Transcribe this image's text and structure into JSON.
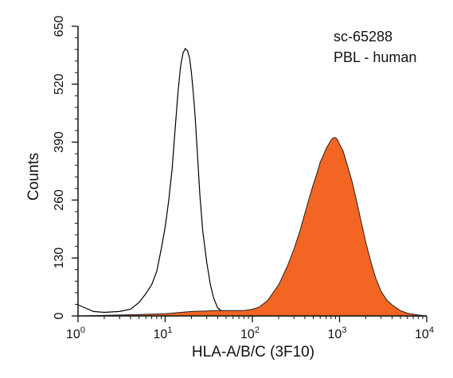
{
  "chart_data": {
    "type": "area",
    "xlabel": "HLA-A/B/C (3F10)",
    "ylabel": "Counts",
    "xscale": "log",
    "xlim": [
      1,
      10000
    ],
    "ylim": [
      0,
      650
    ],
    "x_ticks": [
      {
        "value": 1,
        "base": "10",
        "exp": "0"
      },
      {
        "value": 10,
        "base": "10",
        "exp": "1"
      },
      {
        "value": 100,
        "base": "10",
        "exp": "2"
      },
      {
        "value": 1000,
        "base": "10",
        "exp": "3"
      },
      {
        "value": 10000,
        "base": "10",
        "exp": "4"
      }
    ],
    "y_ticks": [
      "0",
      "130",
      "260",
      "390",
      "520",
      "650"
    ],
    "annotations": [
      "sc-65288",
      "PBL - human"
    ],
    "series": [
      {
        "style": "outline",
        "color": "#000000",
        "x": [
          1,
          1.5,
          2,
          3,
          4,
          5,
          6,
          7,
          8,
          9,
          10,
          11,
          12,
          13,
          14,
          15,
          16,
          17,
          18,
          19,
          20,
          21,
          22,
          23,
          24,
          25,
          27,
          30,
          33,
          36,
          40,
          45,
          50,
          60,
          80,
          100,
          1000,
          10000
        ],
        "y": [
          25,
          10,
          8,
          10,
          15,
          30,
          50,
          70,
          100,
          150,
          200,
          260,
          330,
          420,
          500,
          560,
          590,
          600,
          595,
          580,
          545,
          500,
          450,
          390,
          330,
          270,
          190,
          120,
          70,
          40,
          18,
          10,
          5,
          2,
          0,
          0,
          0,
          0
        ]
      },
      {
        "style": "filled",
        "color": "#f26522",
        "x": [
          1,
          5,
          10,
          20,
          40,
          80,
          100,
          120,
          150,
          200,
          250,
          300,
          350,
          400,
          450,
          500,
          550,
          600,
          650,
          700,
          750,
          800,
          850,
          900,
          950,
          1000,
          1100,
          1200,
          1400,
          1600,
          1800,
          2000,
          2300,
          2600,
          3000,
          3500,
          4000,
          5000,
          6000,
          8000,
          10000
        ],
        "y": [
          0,
          3,
          5,
          10,
          12,
          12,
          15,
          20,
          35,
          70,
          110,
          150,
          190,
          230,
          265,
          295,
          320,
          345,
          360,
          375,
          385,
          395,
          400,
          400,
          395,
          385,
          370,
          345,
          300,
          250,
          205,
          165,
          120,
          85,
          55,
          35,
          25,
          12,
          6,
          2,
          0
        ]
      }
    ]
  }
}
